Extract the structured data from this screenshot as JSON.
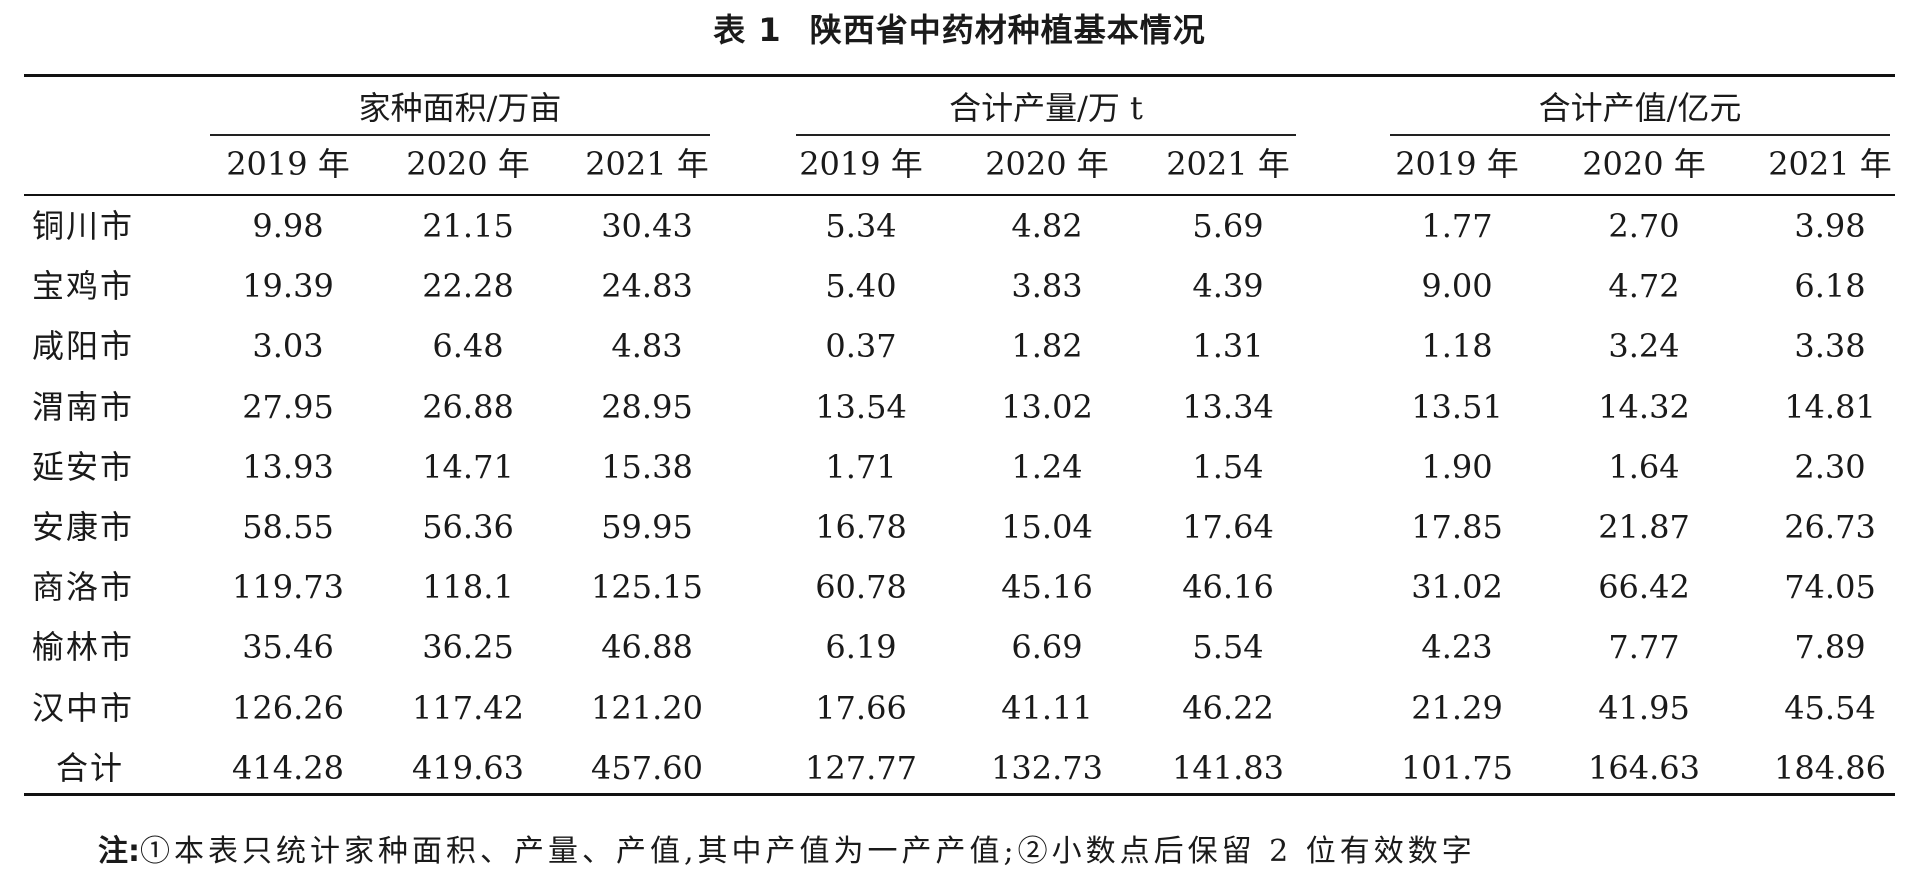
{
  "caption": {
    "number": "表 1",
    "title": "陕西省中药材种植基本情况"
  },
  "groups": [
    {
      "label": "家种面积/万亩",
      "years": [
        "2019 年",
        "2020 年",
        "2021 年"
      ]
    },
    {
      "label": "合计产量/万 t",
      "years": [
        "2019 年",
        "2020 年",
        "2021 年"
      ]
    },
    {
      "label": "合计产值/亿元",
      "years": [
        "2019 年",
        "2020 年",
        "2021 年"
      ]
    }
  ],
  "rows": [
    {
      "city": "铜川市",
      "values": [
        "9.98",
        "21.15",
        "30.43",
        "5.34",
        "4.82",
        "5.69",
        "1.77",
        "2.70",
        "3.98"
      ]
    },
    {
      "city": "宝鸡市",
      "values": [
        "19.39",
        "22.28",
        "24.83",
        "5.40",
        "3.83",
        "4.39",
        "9.00",
        "4.72",
        "6.18"
      ]
    },
    {
      "city": "咸阳市",
      "values": [
        "3.03",
        "6.48",
        "4.83",
        "0.37",
        "1.82",
        "1.31",
        "1.18",
        "3.24",
        "3.38"
      ]
    },
    {
      "city": "渭南市",
      "values": [
        "27.95",
        "26.88",
        "28.95",
        "13.54",
        "13.02",
        "13.34",
        "13.51",
        "14.32",
        "14.81"
      ]
    },
    {
      "city": "延安市",
      "values": [
        "13.93",
        "14.71",
        "15.38",
        "1.71",
        "1.24",
        "1.54",
        "1.90",
        "1.64",
        "2.30"
      ]
    },
    {
      "city": "安康市",
      "values": [
        "58.55",
        "56.36",
        "59.95",
        "16.78",
        "15.04",
        "17.64",
        "17.85",
        "21.87",
        "26.73"
      ]
    },
    {
      "city": "商洛市",
      "values": [
        "119.73",
        "118.1",
        "125.15",
        "60.78",
        "45.16",
        "46.16",
        "31.02",
        "66.42",
        "74.05"
      ]
    },
    {
      "city": "榆林市",
      "values": [
        "35.46",
        "36.25",
        "46.88",
        "6.19",
        "6.69",
        "5.54",
        "4.23",
        "7.77",
        "7.89"
      ]
    },
    {
      "city": "汉中市",
      "values": [
        "126.26",
        "117.42",
        "121.20",
        "17.66",
        "41.11",
        "46.22",
        "21.29",
        "41.95",
        "45.54"
      ]
    },
    {
      "city": "合计",
      "values": [
        "414.28",
        "419.63",
        "457.60",
        "127.77",
        "132.73",
        "141.83",
        "101.75",
        "164.63",
        "184.86"
      ]
    }
  ],
  "note": {
    "label": "注:",
    "text": "①本表只统计家种面积、产量、产值,其中产值为一产产值;②小数点后保留 2 位有效数字"
  }
}
